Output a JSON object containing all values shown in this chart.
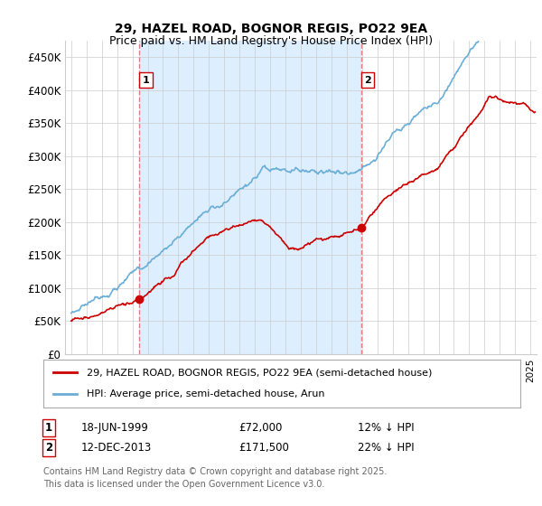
{
  "title_line1": "29, HAZEL ROAD, BOGNOR REGIS, PO22 9EA",
  "title_line2": "Price paid vs. HM Land Registry's House Price Index (HPI)",
  "ylim": [
    0,
    475000
  ],
  "yticks": [
    0,
    50000,
    100000,
    150000,
    200000,
    250000,
    300000,
    350000,
    400000,
    450000
  ],
  "ytick_labels": [
    "£0",
    "£50K",
    "£100K",
    "£150K",
    "£200K",
    "£250K",
    "£300K",
    "£350K",
    "£400K",
    "£450K"
  ],
  "xlim_start": 1994.6,
  "xlim_end": 2025.4,
  "sale1_year": 1999.46,
  "sale1_price": 72000,
  "sale1_label": "1",
  "sale1_date": "18-JUN-1999",
  "sale1_pct": "12% ↓ HPI",
  "sale2_year": 2013.95,
  "sale2_price": 171500,
  "sale2_label": "2",
  "sale2_date": "12-DEC-2013",
  "sale2_pct": "22% ↓ HPI",
  "line_color_hpi": "#6baed6",
  "line_color_price": "#cc0000",
  "dashed_color": "#e06060",
  "shade_color": "#ddeeff",
  "legend_label1": "29, HAZEL ROAD, BOGNOR REGIS, PO22 9EA (semi-detached house)",
  "legend_label2": "HPI: Average price, semi-detached house, Arun",
  "footer": "Contains HM Land Registry data © Crown copyright and database right 2025.\nThis data is licensed under the Open Government Licence v3.0.",
  "background_color": "#ffffff",
  "grid_color": "#cccccc"
}
